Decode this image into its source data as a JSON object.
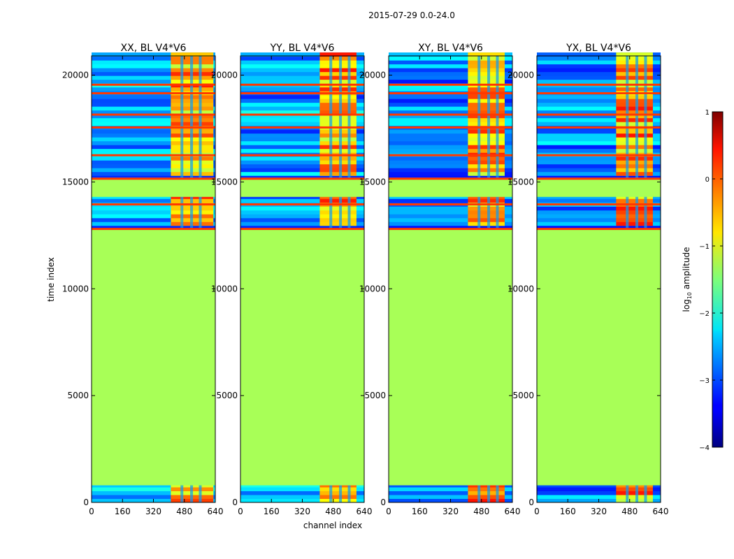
{
  "suptitle": "2015-07-29 0.0-24.0",
  "chart_data": [
    {
      "type": "heatmap",
      "title": "XX, BL V4*V6",
      "xlabel": "channel index",
      "ylabel": "time index",
      "xlim": [
        0,
        640
      ],
      "ylim": [
        0,
        20900
      ],
      "xticks": [
        0,
        160,
        320,
        480,
        640
      ],
      "yticks": [
        0,
        5000,
        10000,
        15000,
        20000
      ],
      "flagged_value_log10": -1.3,
      "flagged_rows": [
        [
          800,
          12800
        ],
        [
          15200,
          14300
        ]
      ],
      "bright_channels": [
        [
          410,
          630
        ]
      ],
      "noise_floor_log10": -3.2
    },
    {
      "type": "heatmap",
      "title": "YY, BL V4*V6",
      "xlabel": "channel index",
      "ylabel": "time index",
      "xlim": [
        0,
        640
      ],
      "ylim": [
        0,
        20900
      ],
      "xticks": [
        0,
        160,
        320,
        480,
        640
      ],
      "yticks": [
        0,
        5000,
        10000,
        15000,
        20000
      ],
      "flagged_value_log10": -1.3,
      "flagged_rows": [
        [
          800,
          12800
        ],
        [
          15200,
          14300
        ]
      ],
      "bright_channels": [
        [
          410,
          600
        ]
      ],
      "noise_floor_log10": -3.2
    },
    {
      "type": "heatmap",
      "title": "XY, BL V4*V6",
      "xlabel": "channel index",
      "ylabel": "time index",
      "xlim": [
        0,
        640
      ],
      "ylim": [
        0,
        20900
      ],
      "xticks": [
        0,
        160,
        320,
        480,
        640
      ],
      "yticks": [
        0,
        5000,
        10000,
        15000,
        20000
      ],
      "flagged_value_log10": -1.3,
      "flagged_rows": [
        [
          800,
          12800
        ],
        [
          15200,
          14300
        ]
      ],
      "bright_channels": [
        [
          410,
          600
        ]
      ],
      "noise_floor_log10": -3.3
    },
    {
      "type": "heatmap",
      "title": "YX, BL V4*V6",
      "xlabel": "channel index",
      "ylabel": "time index",
      "xlim": [
        0,
        640
      ],
      "ylim": [
        0,
        20900
      ],
      "xticks": [
        0,
        160,
        320,
        480,
        640
      ],
      "yticks": [
        0,
        5000,
        10000,
        15000,
        20000
      ],
      "flagged_value_log10": -1.3,
      "flagged_rows": [
        [
          800,
          12800
        ],
        [
          15200,
          14300
        ]
      ],
      "bright_channels": [
        [
          410,
          600
        ]
      ],
      "noise_floor_log10": -3.3
    }
  ],
  "colorbar": {
    "label_prefix": "log",
    "label_sub": "10",
    "label_suffix": " amplitude",
    "vmin": -4,
    "vmax": 1,
    "ticks": [
      1,
      0,
      -1,
      -2,
      -3,
      -4
    ],
    "tick_labels": [
      "1",
      "0",
      "−1",
      "−2",
      "−3",
      "−4"
    ],
    "colormap": "jet"
  }
}
